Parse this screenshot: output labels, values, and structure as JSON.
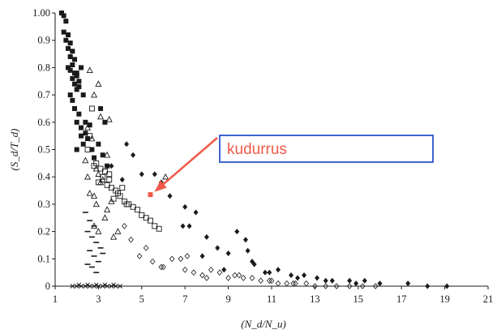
{
  "chart_data": {
    "type": "scatter",
    "title": "",
    "xlabel": "(N_d/N_u)",
    "ylabel": "(S_d/T_d)",
    "xlim": [
      1,
      21
    ],
    "ylim": [
      0,
      1.0
    ],
    "x_ticks": [
      1,
      3,
      5,
      7,
      9,
      11,
      13,
      15,
      17,
      19,
      21
    ],
    "x_tick_labels": [
      "1",
      "3",
      "5",
      "7",
      "9",
      "11",
      "13",
      "15",
      "17",
      "19",
      "21"
    ],
    "y_ticks": [
      0,
      0.1,
      0.2,
      0.3,
      0.4,
      0.5,
      0.6,
      0.7,
      0.8,
      0.9,
      1.0
    ],
    "y_tick_labels": [
      "0",
      "0.1",
      "0.2",
      "0.3",
      "0.4",
      "0.5",
      "0.6",
      "0.7",
      "0.8",
      "0.9",
      "1.00"
    ],
    "grid": false,
    "legend": "none",
    "colors": {
      "markers": "#1a1a1a",
      "highlight": "#f05a4a",
      "callout_border": "#2a56c8"
    },
    "annotation": {
      "text": "kudurrus",
      "point": [
        5.4,
        0.335
      ]
    },
    "series": [
      {
        "marker": "filled-square",
        "x": [
          1.3,
          1.4,
          1.5,
          1.4,
          1.6,
          1.5,
          1.7,
          1.6,
          1.8,
          1.7,
          1.9,
          1.8,
          1.6,
          1.7,
          1.9,
          2.0,
          1.8,
          1.9,
          2.1,
          2.0,
          1.7,
          1.8,
          2.2,
          2.0,
          2.1,
          1.9,
          2.3,
          2.1,
          2.0,
          2.2,
          2.4,
          2.2,
          2.3,
          2.0,
          2.5,
          2.6,
          2.4,
          2.8,
          2.7,
          3.1,
          3.3,
          3.0,
          3.2,
          3.4
        ],
        "y": [
          1.0,
          0.99,
          0.97,
          0.93,
          0.92,
          0.9,
          0.89,
          0.87,
          0.86,
          0.84,
          0.83,
          0.81,
          0.8,
          0.79,
          0.78,
          0.77,
          0.76,
          0.74,
          0.73,
          0.72,
          0.7,
          0.68,
          0.8,
          0.78,
          0.75,
          0.65,
          0.7,
          0.63,
          0.6,
          0.58,
          0.56,
          0.55,
          0.52,
          0.5,
          0.54,
          0.59,
          0.6,
          0.47,
          0.5,
          0.65,
          0.6,
          0.52,
          0.48,
          0.44
        ]
      },
      {
        "marker": "open-triangle",
        "x": [
          2.6,
          2.8,
          2.5,
          3.0,
          2.7,
          2.4,
          2.9,
          3.2,
          2.6,
          3.5,
          3.1,
          2.9,
          3.4,
          3.6,
          3.3,
          2.8,
          3.0,
          3.7,
          3.9,
          6.1,
          2.5,
          2.8,
          3.1,
          3.4,
          3.0
        ],
        "y": [
          0.79,
          0.7,
          0.58,
          0.74,
          0.54,
          0.46,
          0.43,
          0.39,
          0.34,
          0.61,
          0.62,
          0.3,
          0.28,
          0.31,
          0.25,
          0.22,
          0.2,
          0.18,
          0.2,
          0.4,
          0.4,
          0.33,
          0.38,
          0.48,
          0.41
        ],
        "label": ""
      },
      {
        "marker": "open-square",
        "x": [
          2.5,
          2.7,
          2.9,
          3.1,
          3.3,
          3.5,
          2.6,
          3.0,
          3.2,
          3.4,
          3.6,
          3.8,
          4.0,
          4.2,
          4.4,
          4.6,
          4.8,
          5.0,
          5.2,
          5.4,
          5.6,
          5.8,
          3.7,
          3.9,
          4.1,
          4.3,
          2.8,
          3.5
        ],
        "y": [
          0.5,
          0.65,
          0.45,
          0.43,
          0.42,
          0.41,
          0.55,
          0.38,
          0.4,
          0.37,
          0.36,
          0.35,
          0.33,
          0.31,
          0.3,
          0.29,
          0.28,
          0.26,
          0.25,
          0.24,
          0.22,
          0.21,
          0.32,
          0.34,
          0.36,
          0.3,
          0.44,
          0.39
        ]
      },
      {
        "marker": "filled-diamond",
        "x": [
          4.3,
          4.6,
          5.0,
          5.6,
          5.9,
          6.3,
          6.9,
          7.2,
          7.5,
          8.0,
          8.5,
          9.0,
          9.4,
          9.8,
          10.2,
          10.7,
          11.3,
          11.9,
          12.5,
          13.1,
          13.8,
          14.6,
          15.3,
          16.0,
          17.3,
          18.2,
          19.1,
          3.6,
          4.1,
          7.0,
          7.8,
          8.8,
          9.9,
          10.1,
          10.9,
          12.2,
          13.5,
          14.9
        ],
        "y": [
          0.52,
          0.48,
          0.41,
          0.41,
          0.38,
          0.33,
          0.22,
          0.22,
          0.27,
          0.18,
          0.14,
          0.12,
          0.2,
          0.17,
          0.08,
          0.05,
          0.06,
          0.04,
          0.04,
          0.03,
          0.02,
          0.02,
          0.02,
          0.01,
          0.01,
          0.0,
          0.0,
          0.44,
          0.39,
          0.29,
          0.11,
          0.06,
          0.13,
          0.09,
          0.05,
          0.03,
          0.02,
          0.01
        ]
      },
      {
        "marker": "open-diamond",
        "x": [
          4.2,
          4.5,
          4.9,
          5.2,
          5.5,
          5.9,
          6.4,
          6.8,
          7.1,
          7.4,
          7.8,
          8.2,
          8.6,
          9.0,
          9.3,
          9.7,
          10.1,
          10.5,
          10.9,
          11.3,
          11.7,
          12.1,
          12.6,
          13.0,
          13.5,
          14.0,
          14.6,
          15.2,
          15.8,
          6.0,
          7.0,
          8.0,
          9.5,
          11.0,
          12.0
        ],
        "y": [
          0.22,
          0.17,
          0.11,
          0.14,
          0.09,
          0.07,
          0.1,
          0.1,
          0.11,
          0.05,
          0.04,
          0.06,
          0.05,
          0.03,
          0.04,
          0.03,
          0.03,
          0.02,
          0.02,
          0.01,
          0.01,
          0.01,
          0.01,
          0.0,
          0.0,
          0.0,
          0.0,
          0.0,
          0.0,
          0.07,
          0.06,
          0.03,
          0.04,
          0.02,
          0.01
        ]
      },
      {
        "marker": "dash",
        "x": [
          2.4,
          2.6,
          2.8,
          2.5,
          2.7,
          2.9,
          3.1,
          2.6,
          2.8,
          3.0,
          2.5,
          2.7,
          2.9,
          3.2
        ],
        "y": [
          0.27,
          0.24,
          0.22,
          0.2,
          0.18,
          0.16,
          0.14,
          0.13,
          0.11,
          0.09,
          0.08,
          0.07,
          0.05,
          0.12
        ]
      },
      {
        "marker": "cross",
        "x": [
          1.8,
          2.0,
          2.2,
          2.4,
          2.6,
          2.8,
          3.0,
          3.2,
          3.4,
          3.6,
          3.8,
          4.0,
          2.1,
          2.5,
          2.9,
          3.3,
          3.7
        ],
        "y": [
          0.0,
          0.0,
          0.0,
          0.0,
          0.0,
          0.0,
          0.0,
          0.0,
          0.0,
          0.0,
          0.0,
          0.0,
          0.005,
          0.005,
          0.005,
          0.005,
          0.005
        ]
      }
    ]
  }
}
